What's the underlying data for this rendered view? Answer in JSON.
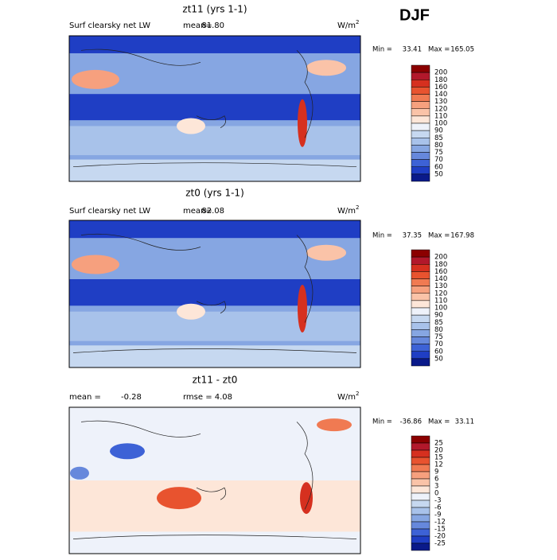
{
  "season": "DJF",
  "panels": [
    {
      "title": "zt11 (yrs 1-1)",
      "left_label": "Surf clearsky net LW",
      "stat_label": "mean=",
      "stat": "81.80",
      "units": "W/m",
      "units_sup": "2",
      "min_label": "Min =",
      "min": "33.41",
      "max_label": "Max =",
      "max": "165.05",
      "colorbar": {
        "levels": [
          200,
          180,
          160,
          140,
          130,
          120,
          110,
          100,
          90,
          85,
          80,
          75,
          70,
          60,
          50
        ],
        "colors": [
          "#8b0000",
          "#b2182b",
          "#d6301f",
          "#e8532f",
          "#f07a52",
          "#f6a07e",
          "#fac3a8",
          "#fde6d8",
          "#eef2fa",
          "#c6d8f0",
          "#a8c2ea",
          "#86a6e2",
          "#6688dc",
          "#3d62d6",
          "#1f3ec4",
          "#0a1a8a"
        ]
      }
    },
    {
      "title": "zt0 (yrs 1-1)",
      "left_label": "Surf clearsky net LW",
      "stat_label": "mean=",
      "stat": "82.08",
      "units": "W/m",
      "units_sup": "2",
      "min_label": "Min =",
      "min": "37.35",
      "max_label": "Max =",
      "max": "167.98",
      "colorbar": {
        "levels": [
          200,
          180,
          160,
          140,
          130,
          120,
          110,
          100,
          90,
          85,
          80,
          75,
          70,
          60,
          50
        ],
        "colors": [
          "#8b0000",
          "#b2182b",
          "#d6301f",
          "#e8532f",
          "#f07a52",
          "#f6a07e",
          "#fac3a8",
          "#fde6d8",
          "#eef2fa",
          "#c6d8f0",
          "#a8c2ea",
          "#86a6e2",
          "#6688dc",
          "#3d62d6",
          "#1f3ec4",
          "#0a1a8a"
        ]
      }
    },
    {
      "title": "zt11 - zt0",
      "left_label": "mean =",
      "left_value": "-0.28",
      "stat_label": "rmse =",
      "stat": "4.08",
      "units": "W/m",
      "units_sup": "2",
      "min_label": "Min =",
      "min": "-36.86",
      "max_label": "Max =",
      "max": "33.11",
      "colorbar": {
        "levels": [
          25,
          20,
          15,
          12,
          9,
          6,
          3,
          0,
          -3,
          -6,
          -9,
          -12,
          -15,
          -20,
          -25
        ],
        "colors": [
          "#8b0000",
          "#b2182b",
          "#d6301f",
          "#e8532f",
          "#f07a52",
          "#f6a07e",
          "#fac3a8",
          "#fde6d8",
          "#eef2fa",
          "#c6d8f0",
          "#a8c2ea",
          "#86a6e2",
          "#6688dc",
          "#3d62d6",
          "#1f3ec4",
          "#0a1a8a"
        ]
      }
    }
  ]
}
